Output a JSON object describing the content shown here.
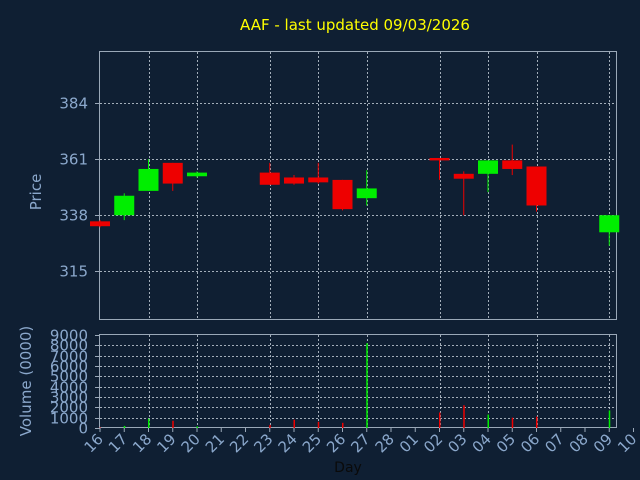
{
  "chart_data": {
    "type": "candlestick",
    "title": "AAF - last updated 09/03/2026",
    "xlabel": "Day",
    "price_panel": {
      "ylabel": "Price",
      "yticks": [
        315,
        338,
        361,
        384
      ],
      "ylim": [
        295,
        405
      ]
    },
    "volume_panel": {
      "ylabel": "Volume (0000)",
      "yticks": [
        0,
        1000,
        2000,
        3000,
        4000,
        5000,
        6000,
        7000,
        8000,
        9000
      ],
      "ylim": [
        0,
        9000
      ]
    },
    "x_tick_labels": [
      "16",
      "17",
      "18",
      "19",
      "20",
      "21",
      "22",
      "23",
      "24",
      "25",
      "26",
      "27",
      "28",
      "01",
      "02",
      "03",
      "04",
      "05",
      "06",
      "07",
      "08",
      "09",
      "10"
    ],
    "grid_days": [
      "18",
      "20",
      "23",
      "25",
      "27",
      "02",
      "04",
      "06",
      "09"
    ],
    "colors": {
      "background": "#0f1f33",
      "up": "#00ee00",
      "down": "#ee0000",
      "text": "#8ba8cc",
      "title": "#ffff00",
      "grid": "#c8d2dc"
    },
    "candles": [
      {
        "day": "16",
        "open": 335.5,
        "close": 333.5,
        "high": 336,
        "low": 333,
        "volume": 50
      },
      {
        "day": "17",
        "open": 338,
        "close": 346,
        "high": 347,
        "low": 336,
        "volume": 200
      },
      {
        "day": "18",
        "open": 348,
        "close": 357,
        "high": 361,
        "low": 348,
        "volume": 900
      },
      {
        "day": "19",
        "open": 359.5,
        "close": 351,
        "high": 359.5,
        "low": 348,
        "volume": 700
      },
      {
        "day": "20",
        "open": 354,
        "close": 355.5,
        "high": 356,
        "low": 353.5,
        "volume": 150
      },
      {
        "day": "23",
        "open": 355.5,
        "close": 350.5,
        "high": 359.5,
        "low": 350.5,
        "volume": 300
      },
      {
        "day": "24",
        "open": 353.5,
        "close": 351,
        "high": 354.5,
        "low": 350.5,
        "volume": 800
      },
      {
        "day": "25",
        "open": 353.5,
        "close": 351.5,
        "high": 359.5,
        "low": 351,
        "volume": 600
      },
      {
        "day": "26",
        "open": 352.5,
        "close": 340.5,
        "high": 352.5,
        "low": 340,
        "volume": 500
      },
      {
        "day": "27",
        "open": 345,
        "close": 349,
        "high": 356.5,
        "low": 342,
        "volume": 8200
      },
      {
        "day": "02",
        "open": 361.5,
        "close": 360.5,
        "high": 361.5,
        "low": 352.5,
        "volume": 1500
      },
      {
        "day": "03",
        "open": 355,
        "close": 353,
        "high": 356,
        "low": 338,
        "volume": 2200
      },
      {
        "day": "04",
        "open": 355,
        "close": 360.5,
        "high": 360.5,
        "low": 347.5,
        "volume": 1300
      },
      {
        "day": "05",
        "open": 360.5,
        "close": 357,
        "high": 367,
        "low": 354.5,
        "volume": 1000
      },
      {
        "day": "06",
        "open": 358,
        "close": 342,
        "high": 358,
        "low": 339.5,
        "volume": 1100
      },
      {
        "day": "09",
        "open": 331,
        "close": 338,
        "high": 338,
        "low": 325.5,
        "volume": 1700
      }
    ]
  }
}
